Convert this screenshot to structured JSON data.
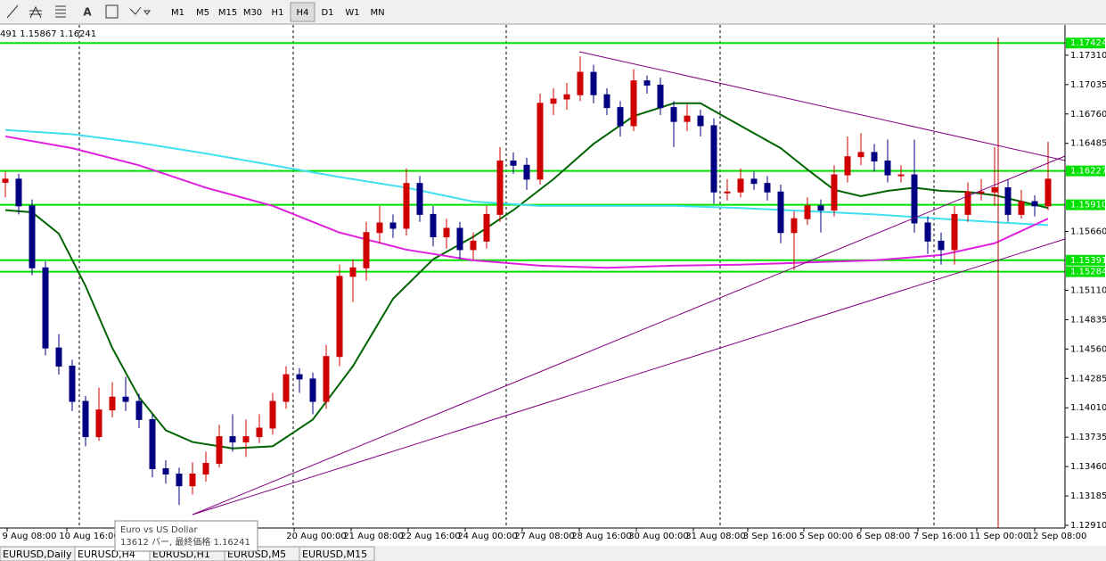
{
  "toolbar": {
    "timeframes": [
      "M1",
      "M5",
      "M15",
      "M30",
      "H1",
      "H4",
      "D1",
      "W1",
      "MN"
    ],
    "active_index": 5
  },
  "chart": {
    "type": "candlestick",
    "symbol_info": "491 1.15867 1.16241",
    "ylim": [
      1.12885,
      1.17593
    ],
    "yticks": [
      {
        "value": 1.1731,
        "label": "1.17310"
      },
      {
        "value": 1.17035,
        "label": "1.17035"
      },
      {
        "value": 1.1676,
        "label": "1.16760"
      },
      {
        "value": 1.16485,
        "label": "1.16485"
      },
      {
        "value": 1.1566,
        "label": "1.15660"
      },
      {
        "value": 1.1511,
        "label": "1.15110"
      },
      {
        "value": 1.14835,
        "label": "1.14835"
      },
      {
        "value": 1.1456,
        "label": "1.14560"
      },
      {
        "value": 1.14285,
        "label": "1.14285"
      },
      {
        "value": 1.1401,
        "label": "1.14010"
      },
      {
        "value": 1.13735,
        "label": "1.13735"
      },
      {
        "value": 1.1346,
        "label": "1.13460"
      },
      {
        "value": 1.13185,
        "label": "1.13185"
      },
      {
        "value": 1.1291,
        "label": "1.12910"
      }
    ],
    "levels": [
      {
        "value": 1.17424,
        "label": "1.17424"
      },
      {
        "value": 1.16227,
        "label": "1.16227"
      },
      {
        "value": 1.1591,
        "label": "1.15910"
      },
      {
        "value": 1.15391,
        "label": "1.15391"
      },
      {
        "value": 1.15284,
        "label": "1.15284"
      }
    ],
    "level_color": "#00e000",
    "up_color": "#d00000",
    "down_color": "#000080",
    "candles": [
      [
        1.1612,
        1.1622,
        1.1598,
        1.1615
      ],
      [
        1.1615,
        1.162,
        1.1582,
        1.159
      ],
      [
        1.159,
        1.1596,
        1.1525,
        1.1532
      ],
      [
        1.1532,
        1.1538,
        1.145,
        1.1457
      ],
      [
        1.1457,
        1.147,
        1.1432,
        1.144
      ],
      [
        1.144,
        1.1446,
        1.1398,
        1.1407
      ],
      [
        1.1407,
        1.1412,
        1.1365,
        1.1374
      ],
      [
        1.1374,
        1.142,
        1.137,
        1.1399
      ],
      [
        1.1399,
        1.1425,
        1.1392,
        1.1411
      ],
      [
        1.1411,
        1.143,
        1.1398,
        1.1407
      ],
      [
        1.1407,
        1.1414,
        1.1382,
        1.139
      ],
      [
        1.139,
        1.1395,
        1.1336,
        1.1344
      ],
      [
        1.1344,
        1.1352,
        1.133,
        1.1339
      ],
      [
        1.1339,
        1.1345,
        1.131,
        1.1328
      ],
      [
        1.1328,
        1.135,
        1.132,
        1.1339
      ],
      [
        1.1339,
        1.136,
        1.1332,
        1.1349
      ],
      [
        1.1349,
        1.1385,
        1.1345,
        1.1374
      ],
      [
        1.1374,
        1.1395,
        1.136,
        1.1369
      ],
      [
        1.1369,
        1.139,
        1.1355,
        1.1374
      ],
      [
        1.1374,
        1.1395,
        1.1368,
        1.1382
      ],
      [
        1.1382,
        1.1415,
        1.1376,
        1.1407
      ],
      [
        1.1407,
        1.144,
        1.14,
        1.1432
      ],
      [
        1.1432,
        1.1438,
        1.1415,
        1.1428
      ],
      [
        1.1428,
        1.1434,
        1.1395,
        1.1407
      ],
      [
        1.1407,
        1.146,
        1.14,
        1.1449
      ],
      [
        1.1449,
        1.1535,
        1.144,
        1.1524
      ],
      [
        1.1524,
        1.154,
        1.15,
        1.1532
      ],
      [
        1.1532,
        1.1575,
        1.152,
        1.1565
      ],
      [
        1.1565,
        1.159,
        1.1555,
        1.1574
      ],
      [
        1.1574,
        1.1582,
        1.156,
        1.1569
      ],
      [
        1.1569,
        1.1625,
        1.1562,
        1.1611
      ],
      [
        1.1611,
        1.1618,
        1.1575,
        1.1582
      ],
      [
        1.1582,
        1.159,
        1.1552,
        1.1561
      ],
      [
        1.1561,
        1.1578,
        1.155,
        1.1569
      ],
      [
        1.1569,
        1.1575,
        1.154,
        1.1549
      ],
      [
        1.1549,
        1.1565,
        1.154,
        1.1557
      ],
      [
        1.1557,
        1.159,
        1.155,
        1.1582
      ],
      [
        1.1582,
        1.1645,
        1.1575,
        1.1632
      ],
      [
        1.1632,
        1.164,
        1.162,
        1.1628
      ],
      [
        1.1628,
        1.1635,
        1.1605,
        1.1615
      ],
      [
        1.1615,
        1.1695,
        1.161,
        1.1686
      ],
      [
        1.1686,
        1.17,
        1.1675,
        1.169
      ],
      [
        1.169,
        1.1705,
        1.168,
        1.1694
      ],
      [
        1.1694,
        1.173,
        1.1688,
        1.1715
      ],
      [
        1.1715,
        1.1722,
        1.1686,
        1.1694
      ],
      [
        1.1694,
        1.17,
        1.1675,
        1.1682
      ],
      [
        1.1682,
        1.1688,
        1.1655,
        1.1665
      ],
      [
        1.1665,
        1.1718,
        1.166,
        1.1707
      ],
      [
        1.1707,
        1.1712,
        1.1695,
        1.1703
      ],
      [
        1.1703,
        1.171,
        1.1675,
        1.1682
      ],
      [
        1.1682,
        1.1688,
        1.1645,
        1.1669
      ],
      [
        1.1669,
        1.1685,
        1.166,
        1.1674
      ],
      [
        1.1674,
        1.168,
        1.1655,
        1.1665
      ],
      [
        1.1665,
        1.1672,
        1.1592,
        1.1603
      ],
      [
        1.1603,
        1.1615,
        1.1595,
        1.1603
      ],
      [
        1.1603,
        1.1625,
        1.1598,
        1.1615
      ],
      [
        1.1615,
        1.1622,
        1.1605,
        1.1611
      ],
      [
        1.1611,
        1.1618,
        1.1595,
        1.1603
      ],
      [
        1.1603,
        1.161,
        1.1555,
        1.1565
      ],
      [
        1.1565,
        1.1585,
        1.153,
        1.1578
      ],
      [
        1.1578,
        1.1598,
        1.1572,
        1.159
      ],
      [
        1.159,
        1.1596,
        1.1565,
        1.1586
      ],
      [
        1.1586,
        1.1628,
        1.158,
        1.1619
      ],
      [
        1.1619,
        1.1655,
        1.1612,
        1.1636
      ],
      [
        1.1636,
        1.1658,
        1.1628,
        1.164
      ],
      [
        1.164,
        1.1648,
        1.1622,
        1.1632
      ],
      [
        1.1632,
        1.1652,
        1.1612,
        1.1619
      ],
      [
        1.1619,
        1.1628,
        1.1612,
        1.1619
      ],
      [
        1.1619,
        1.1652,
        1.1565,
        1.1574
      ],
      [
        1.1574,
        1.158,
        1.1545,
        1.1557
      ],
      [
        1.1557,
        1.1565,
        1.1535,
        1.1549
      ],
      [
        1.1549,
        1.159,
        1.1535,
        1.1582
      ],
      [
        1.1582,
        1.1612,
        1.1575,
        1.1603
      ],
      [
        1.1603,
        1.1615,
        1.1595,
        1.1603
      ],
      [
        1.1603,
        1.1645,
        1.159,
        1.1607
      ],
      [
        1.1607,
        1.1615,
        1.1575,
        1.1582
      ],
      [
        1.1582,
        1.1605,
        1.1578,
        1.1594
      ],
      [
        1.1594,
        1.16,
        1.158,
        1.159
      ],
      [
        1.159,
        1.165,
        1.1586,
        1.1615
      ]
    ],
    "moving_averages": [
      {
        "color": "#006400",
        "x": [
          0,
          2,
          4,
          6,
          8,
          10,
          12,
          14,
          17,
          20,
          23,
          26,
          29,
          32,
          35,
          38,
          41,
          44,
          47,
          50,
          52,
          55,
          58,
          60,
          62,
          64,
          66,
          68,
          70,
          72,
          74,
          76,
          78
        ],
        "values": [
          1.1586,
          1.1584,
          1.1564,
          1.1515,
          1.1457,
          1.1411,
          1.138,
          1.1369,
          1.1363,
          1.1365,
          1.139,
          1.144,
          1.1503,
          1.154,
          1.1561,
          1.1586,
          1.1615,
          1.1648,
          1.1674,
          1.1686,
          1.1686,
          1.1665,
          1.1644,
          1.1624,
          1.1605,
          1.1599,
          1.1604,
          1.1607,
          1.1604,
          1.1603,
          1.16,
          1.1594,
          1.1588
        ]
      },
      {
        "color": "#40e0f0",
        "x": [
          0,
          5,
          10,
          15,
          20,
          25,
          30,
          35,
          40,
          45,
          50,
          55,
          60,
          65,
          70,
          75,
          78
        ],
        "values": [
          1.1661,
          1.1657,
          1.1649,
          1.1639,
          1.1628,
          1.1617,
          1.1607,
          1.1594,
          1.159,
          1.159,
          1.159,
          1.1588,
          1.1585,
          1.1582,
          1.1578,
          1.1574,
          1.1572
        ]
      },
      {
        "color": "#e020e0",
        "x": [
          0,
          5,
          10,
          15,
          20,
          25,
          30,
          35,
          40,
          45,
          50,
          55,
          60,
          65,
          70,
          74,
          78
        ],
        "values": [
          1.1655,
          1.1644,
          1.1628,
          1.1607,
          1.159,
          1.1565,
          1.1549,
          1.1539,
          1.1534,
          1.1532,
          1.1534,
          1.1535,
          1.1537,
          1.1539,
          1.1544,
          1.1555,
          1.1578
        ]
      }
    ],
    "time_labels": [
      "9 Aug 08:00",
      "10 Aug 16:00",
      "20 Aug 00:00",
      "21 Aug 08:00",
      "22 Aug 16:00",
      "24 Aug 00:00",
      "27 Aug 08:00",
      "28 Aug 16:00",
      "30 Aug 00:00",
      "31 Aug 08:00",
      "3 Sep 16:00",
      "5 Sep 00:00",
      "6 Sep 08:00",
      "7 Sep 16:00",
      "11 Sep 00:00",
      "12 Sep 08:00"
    ]
  },
  "tooltip": {
    "title": "Euro vs US Dollar",
    "detail": "13612 バー, 最終価格 1.16241"
  },
  "tabs": [
    "EURUSD,Daily",
    "EURUSD,H4",
    "EURUSD,H1",
    "EURUSD,M5",
    "EURUSD,M15"
  ],
  "active_tab": 1
}
